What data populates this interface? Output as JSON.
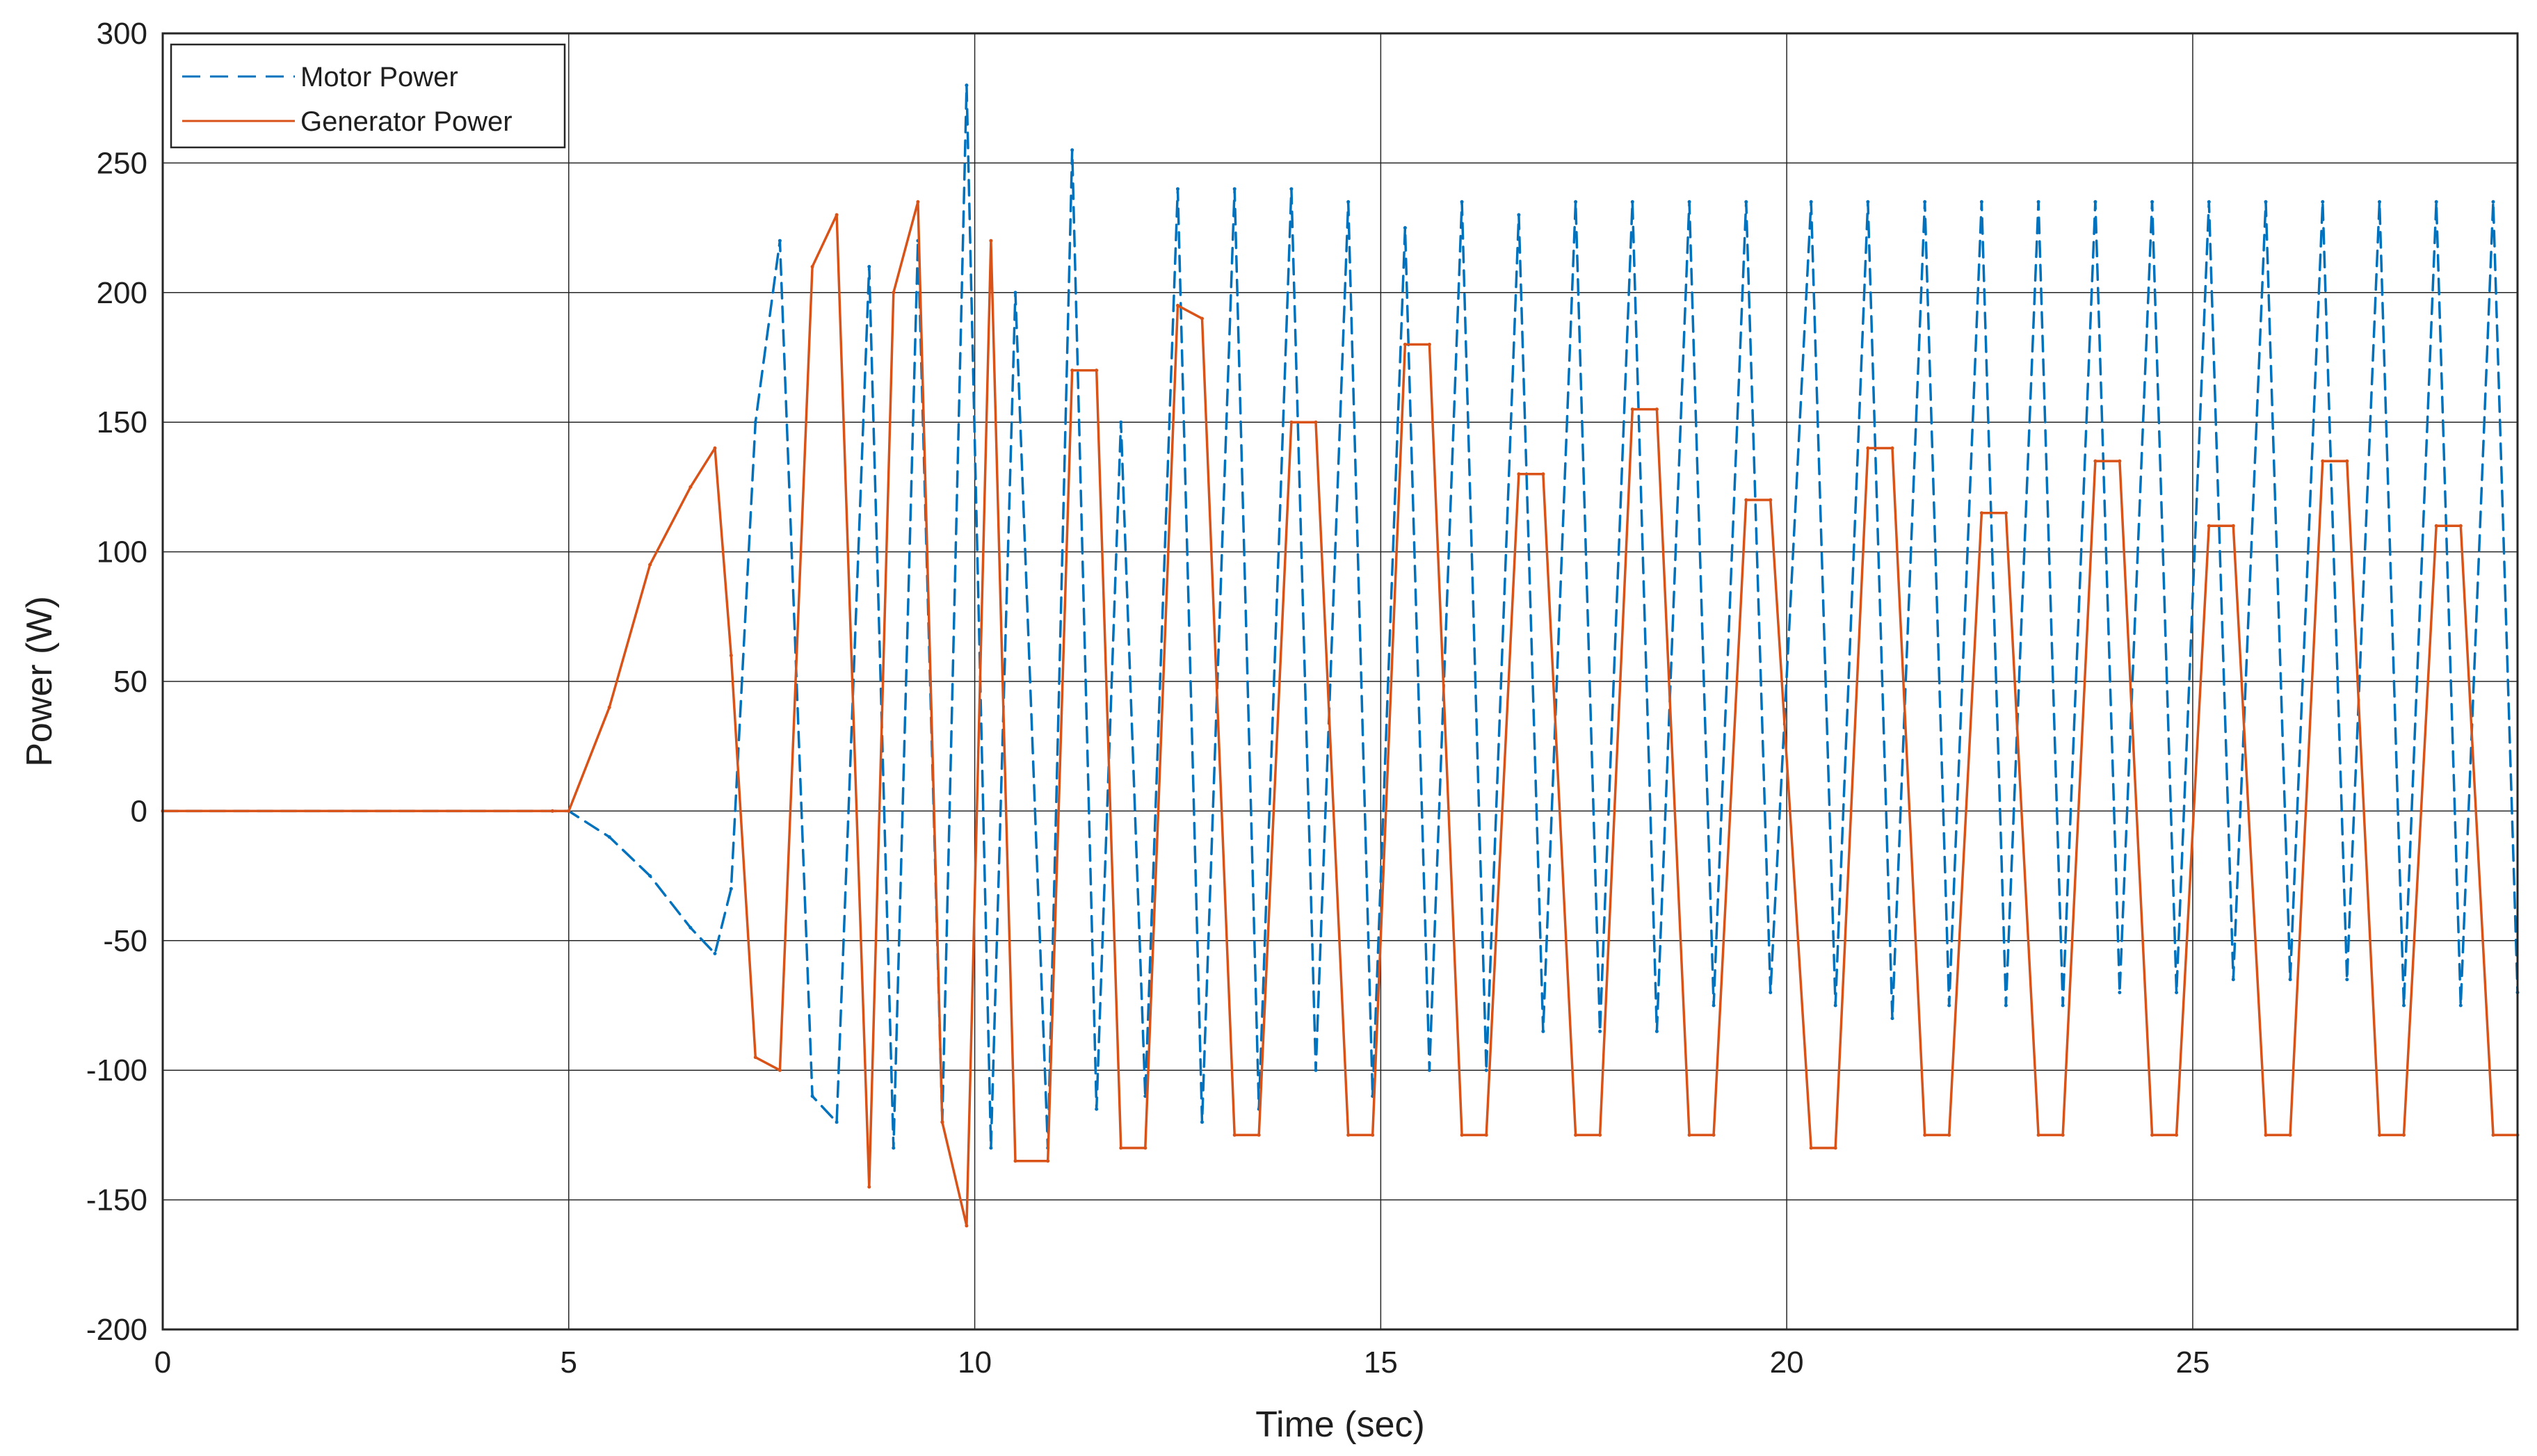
{
  "chart_data": {
    "type": "line",
    "title": "",
    "xlabel": "Time (sec)",
    "ylabel": "Power (W)",
    "xlim": [
      0,
      29
    ],
    "ylim": [
      -200,
      300
    ],
    "xticks": [
      0,
      5,
      10,
      15,
      20,
      25
    ],
    "yticks": [
      -200,
      -150,
      -100,
      -50,
      0,
      50,
      100,
      150,
      200,
      250,
      300
    ],
    "grid": true,
    "legend_location": "top-left",
    "legend": [
      "Motor Power",
      "Generator Power"
    ],
    "x": [
      0,
      4.8,
      5.0,
      5.5,
      6.0,
      6.5,
      6.8,
      7.0,
      7.3,
      7.6,
      8.0,
      8.3,
      8.7,
      9.0,
      9.3,
      9.6,
      9.9,
      10.2,
      10.5,
      10.9,
      11.2,
      11.5,
      11.8,
      12.1,
      12.5,
      12.8,
      13.2,
      13.5,
      13.9,
      14.2,
      14.6,
      14.9,
      15.3,
      15.6,
      16.0,
      16.3,
      16.7,
      17.0,
      17.4,
      17.7,
      18.1,
      18.4,
      18.8,
      19.1,
      19.5,
      19.8,
      20.3,
      20.6,
      21.0,
      21.3,
      21.7,
      22.0,
      22.4,
      22.7,
      23.1,
      23.4,
      23.8,
      24.1,
      24.5,
      24.8,
      25.2,
      25.5,
      25.9,
      26.2,
      26.6,
      26.9,
      27.3,
      27.6,
      28.0,
      28.3,
      28.7,
      29.0
    ],
    "series": [
      {
        "name": "Motor Power",
        "style": "dashed",
        "color": "#0072BD",
        "values": [
          0,
          0,
          0,
          -10,
          -25,
          -45,
          -55,
          -30,
          150,
          220,
          -110,
          -120,
          210,
          -130,
          220,
          -120,
          280,
          -130,
          200,
          -130,
          255,
          -115,
          150,
          -110,
          240,
          -120,
          240,
          -115,
          240,
          -100,
          235,
          -110,
          225,
          -100,
          235,
          -100,
          230,
          -85,
          235,
          -85,
          235,
          -85,
          235,
          -75,
          235,
          -70,
          235,
          -75,
          235,
          -80,
          235,
          -75,
          235,
          -75,
          235,
          -75,
          235,
          -70,
          235,
          -70,
          235,
          -65,
          235,
          -65,
          235,
          -65,
          235,
          -75,
          235,
          -75,
          235,
          -70
        ]
      },
      {
        "name": "Generator Power",
        "style": "solid",
        "color": "#D95319",
        "values": [
          0,
          0,
          0,
          40,
          95,
          125,
          140,
          60,
          -95,
          -100,
          210,
          230,
          -145,
          200,
          235,
          -120,
          -160,
          220,
          -135,
          -135,
          170,
          170,
          -130,
          -130,
          195,
          190,
          -125,
          -125,
          150,
          150,
          -125,
          -125,
          180,
          180,
          -125,
          -125,
          130,
          130,
          -125,
          -125,
          155,
          155,
          -125,
          -125,
          120,
          120,
          -130,
          -130,
          140,
          140,
          -125,
          -125,
          115,
          115,
          -125,
          -125,
          135,
          135,
          -125,
          -125,
          110,
          110,
          -125,
          -125,
          135,
          135,
          -125,
          -125,
          110,
          110,
          -125,
          -125
        ]
      }
    ]
  }
}
